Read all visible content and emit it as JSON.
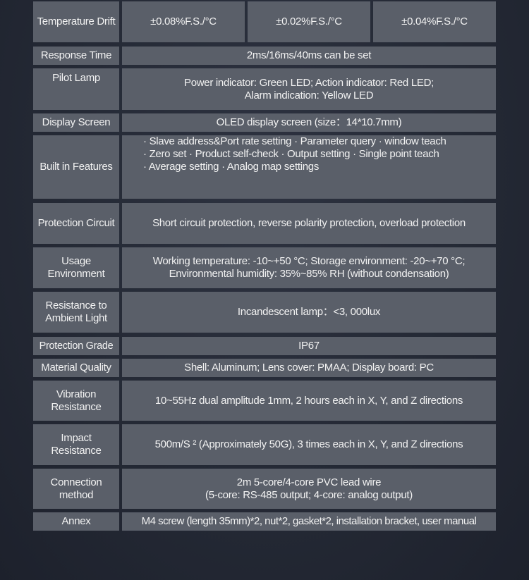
{
  "rows": [
    {
      "label": "Temperature Drift",
      "values": [
        "±0.08%F.S./°C",
        "±0.02%F.S./°C",
        "±0.04%F.S./°C"
      ]
    },
    {
      "label": "Response Time",
      "value": "2ms/16ms/40ms can be set"
    },
    {
      "label": "Pilot Lamp",
      "value_lines": [
        "Power indicator: Green LED; Action indicator: Red LED;",
        "Alarm indication: Yellow LED"
      ]
    },
    {
      "label": "Display Screen",
      "value": "OLED display screen (size：14*10.7mm)"
    },
    {
      "label": "Built in Features",
      "value_lines": [
        "· Slave address&Port rate setting · Parameter query · window teach",
        "· Zero set · Product self-check · Output setting · Single point teach",
        "· Average setting · Analog map settings"
      ]
    },
    {
      "label": "Protection Circuit",
      "value": "Short circuit protection, reverse polarity protection, overload protection"
    },
    {
      "label": "Usage Environment",
      "value_lines": [
        "Working temperature: -10~+50 °C; Storage environment: -20~+70 °C;",
        "Environmental humidity: 35%~85% RH (without condensation)"
      ]
    },
    {
      "label": "Resistance to Ambient Light",
      "value": "Incandescent lamp：<3, 000lux"
    },
    {
      "label": "Protection Grade",
      "value": "IP67"
    },
    {
      "label": "Material Quality",
      "value": "Shell: Aluminum; Lens cover: PMAA; Display board: PC"
    },
    {
      "label": "Vibration Resistance",
      "value": "10~55Hz dual amplitude 1mm, 2 hours each in X, Y, and Z directions"
    },
    {
      "label": "Impact Resistance",
      "value": "500m/S ² (Approximately 50G), 3 times each in X, Y, and Z directions"
    },
    {
      "label": "Connection method",
      "value_lines": [
        "2m 5-core/4-core PVC lead wire",
        "(5-core: RS-485 output; 4-core: analog output)"
      ]
    },
    {
      "label": "Annex",
      "value": "M4 screw (length 35mm)*2, nut*2, gasket*2, installation bracket, user manual"
    }
  ]
}
